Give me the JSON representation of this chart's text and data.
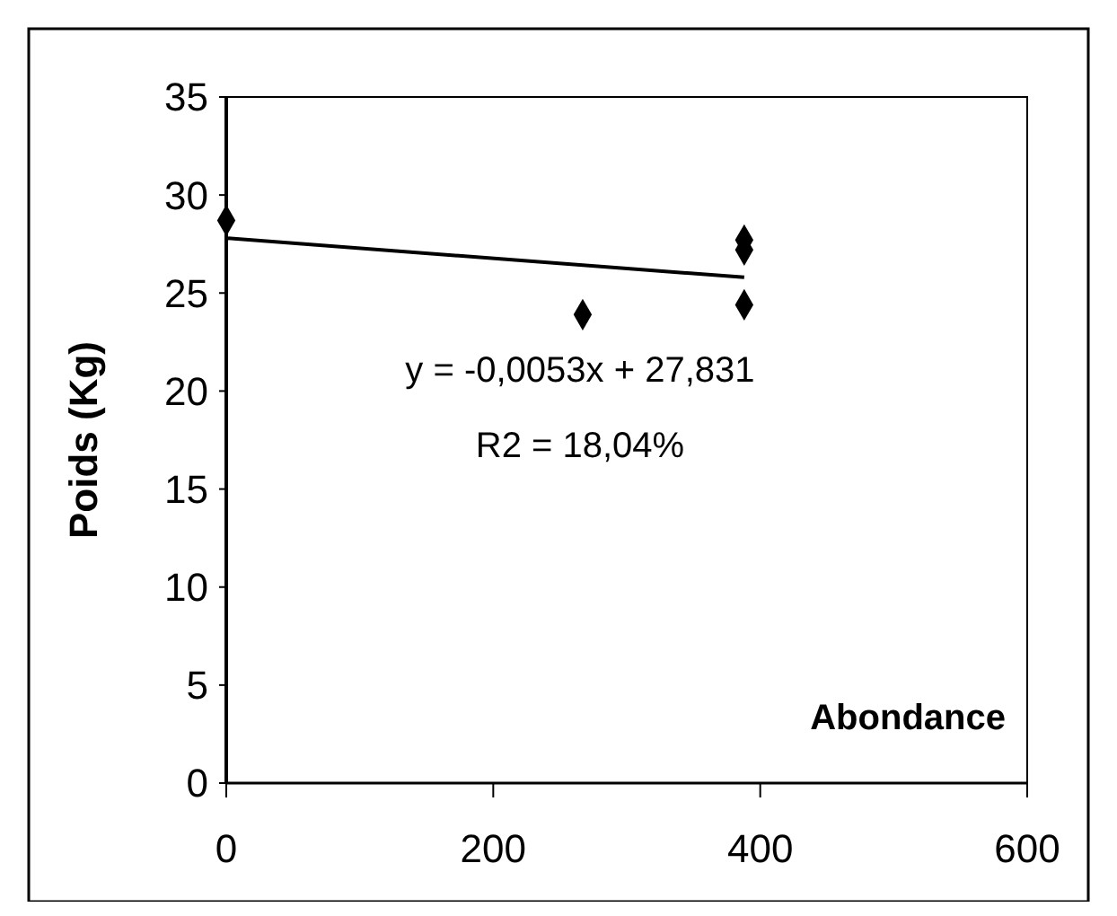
{
  "chart_data": {
    "type": "scatter",
    "xlabel": "Abondance",
    "ylabel": "Poids (Kg)",
    "xlim": [
      0,
      600
    ],
    "ylim": [
      0,
      35
    ],
    "xticks": [
      0,
      200,
      400,
      600
    ],
    "yticks": [
      0,
      5,
      10,
      15,
      20,
      25,
      30,
      35
    ],
    "grid": false,
    "annotations": [
      "y = -0,0053x + 27,831",
      "R2 = 18,04%"
    ],
    "series": [
      {
        "color": "#000000",
        "marker": "diamond",
        "x": [
          0,
          267,
          388,
          388,
          388
        ],
        "values": [
          28.7,
          23.9,
          27.7,
          27.2,
          24.4
        ]
      },
      {
        "type": "line",
        "color": "#000000",
        "x": [
          0,
          388
        ],
        "values": [
          27.8,
          25.8
        ]
      }
    ]
  }
}
